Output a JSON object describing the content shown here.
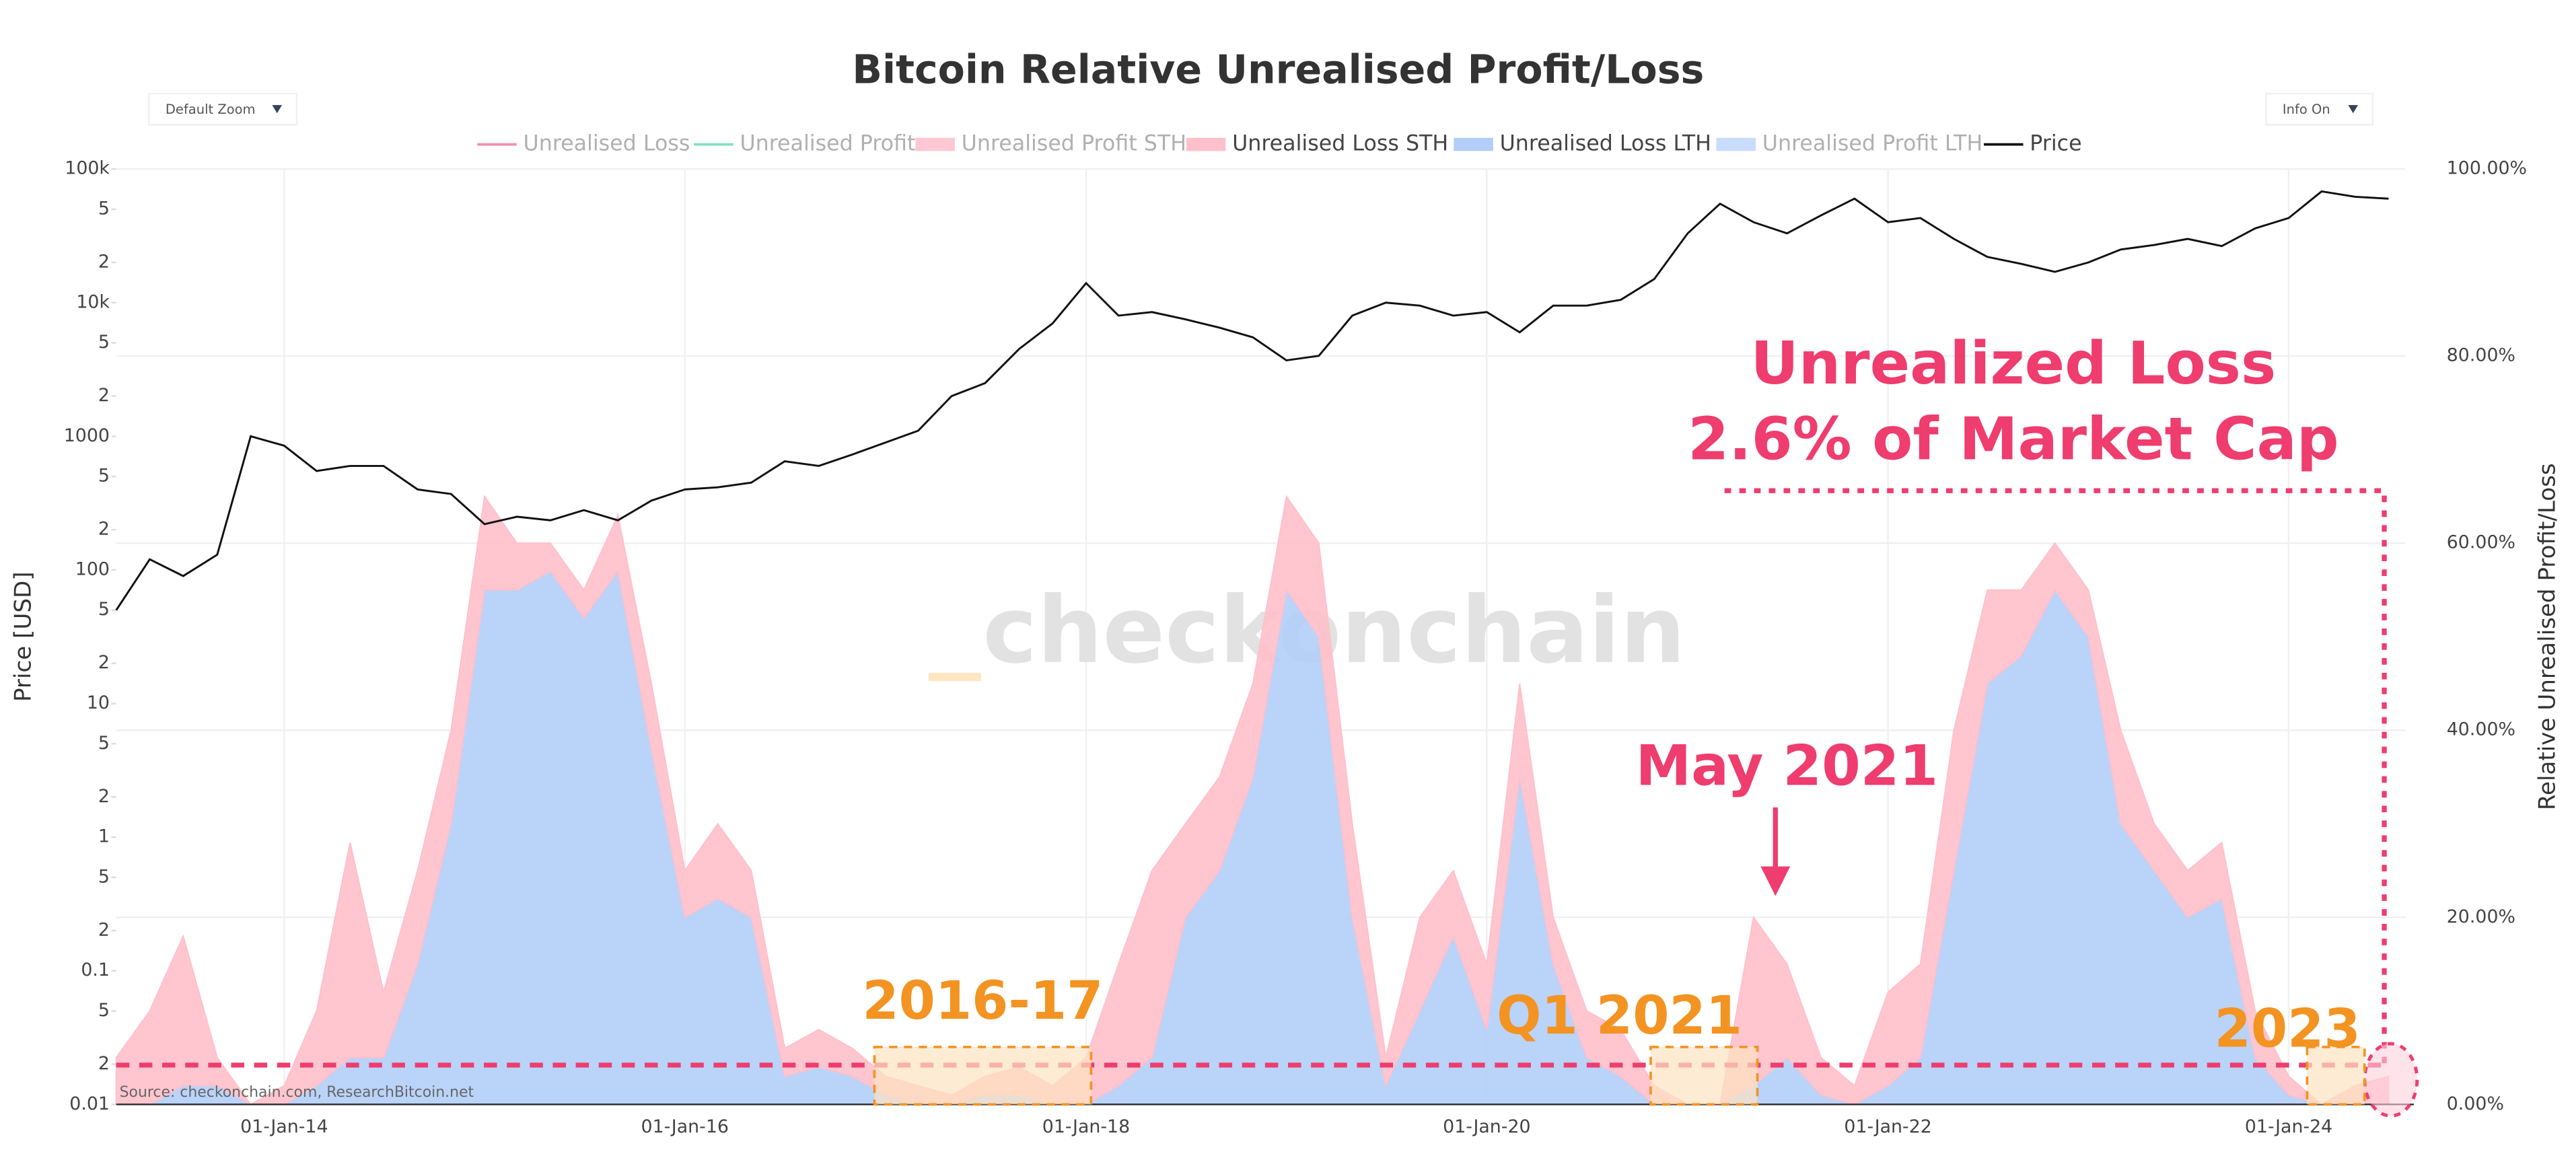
{
  "chart_data": {
    "type": "line-area",
    "title": "Bitcoin Relative Unrealised Profit/Loss",
    "controls": [
      "Default Zoom",
      "Info On"
    ],
    "ylabel": "Price [USD]",
    "y2label": "Relative Unrealised Profit/Loss",
    "source": "Source: checkonchain.com, ResearchBitcoin.net",
    "watermark": "checkonchain",
    "ylog": true,
    "grid": true,
    "legend": [
      {
        "name": "Unrealised Loss",
        "color": "#f48fb1",
        "visible": false
      },
      {
        "name": "Unrealised Profit",
        "color": "#7fe0c2",
        "visible": false
      },
      {
        "name": "Unrealised Profit STH",
        "color": "#ffc7d1",
        "visible": false
      },
      {
        "name": "Unrealised Loss STH",
        "color": "#ffc0cb",
        "visible": true
      },
      {
        "name": "Unrealised Loss LTH",
        "color": "#b3cef8",
        "visible": true
      },
      {
        "name": "Unrealised Profit LTH",
        "color": "#c8dcfb",
        "visible": false
      },
      {
        "name": "Price",
        "color": "#111111",
        "visible": true
      }
    ],
    "x": [
      "2013-03-01",
      "2013-05-01",
      "2013-07-01",
      "2013-09-01",
      "2013-11-01",
      "2014-01-01",
      "2014-03-01",
      "2014-05-01",
      "2014-07-01",
      "2014-09-01",
      "2014-11-01",
      "2015-01-01",
      "2015-03-01",
      "2015-05-01",
      "2015-07-01",
      "2015-09-01",
      "2015-11-01",
      "2016-01-01",
      "2016-03-01",
      "2016-05-01",
      "2016-07-01",
      "2016-09-01",
      "2016-11-01",
      "2017-01-01",
      "2017-03-01",
      "2017-05-01",
      "2017-07-01",
      "2017-09-01",
      "2017-11-01",
      "2018-01-01",
      "2018-03-01",
      "2018-05-01",
      "2018-07-01",
      "2018-09-01",
      "2018-11-01",
      "2019-01-01",
      "2019-03-01",
      "2019-05-01",
      "2019-07-01",
      "2019-09-01",
      "2019-11-01",
      "2020-01-01",
      "2020-03-01",
      "2020-05-01",
      "2020-07-01",
      "2020-09-01",
      "2020-11-01",
      "2021-01-01",
      "2021-03-01",
      "2021-05-01",
      "2021-07-01",
      "2021-09-01",
      "2021-11-01",
      "2022-01-01",
      "2022-03-01",
      "2022-05-01",
      "2022-07-01",
      "2022-09-01",
      "2022-11-01",
      "2023-01-01",
      "2023-03-01",
      "2023-05-01",
      "2023-07-01",
      "2023-09-01",
      "2023-11-01",
      "2024-01-01",
      "2024-03-01",
      "2024-05-01",
      "2024-07-01"
    ],
    "series": [
      {
        "name": "Price",
        "color": "#111111",
        "axis": "y",
        "values": [
          50,
          120,
          90,
          130,
          1000,
          850,
          550,
          600,
          600,
          400,
          370,
          220,
          250,
          235,
          280,
          235,
          330,
          400,
          415,
          450,
          650,
          600,
          730,
          900,
          1100,
          2000,
          2500,
          4500,
          7000,
          14000,
          8000,
          8500,
          7500,
          6500,
          5500,
          3700,
          4000,
          8000,
          10000,
          9500,
          8000,
          8500,
          6000,
          9500,
          9500,
          10500,
          15000,
          33000,
          55000,
          40000,
          33000,
          45000,
          60000,
          40000,
          43000,
          30000,
          22000,
          19500,
          17000,
          20000,
          25000,
          27000,
          30000,
          26500,
          36000,
          43000,
          68000,
          62000,
          60000
        ]
      },
      {
        "name": "Unrealised Loss LTH",
        "color": "#b3cef8",
        "axis": "y2",
        "values": [
          0,
          0,
          2,
          2,
          0,
          0,
          2,
          5,
          5,
          15,
          30,
          55,
          55,
          57,
          52,
          57,
          38,
          20,
          22,
          20,
          3,
          4,
          3,
          1,
          0,
          0,
          1,
          1,
          0,
          0,
          2,
          5,
          20,
          25,
          35,
          55,
          50,
          20,
          2,
          10,
          18,
          8,
          35,
          15,
          5,
          3,
          0,
          0,
          0,
          2,
          5,
          1,
          0,
          2,
          5,
          25,
          45,
          48,
          55,
          50,
          30,
          25,
          20,
          22,
          5,
          1,
          0,
          0,
          0
        ]
      },
      {
        "name": "Unrealised Loss STH",
        "color": "#ffc0cb",
        "axis": "y2",
        "stacked": true,
        "values": [
          5,
          10,
          16,
          3,
          0,
          2,
          8,
          23,
          7,
          10,
          10,
          10,
          5,
          3,
          3,
          6,
          7,
          5,
          8,
          5,
          3,
          4,
          3,
          2,
          2,
          1,
          2,
          3,
          2,
          5,
          13,
          20,
          10,
          10,
          10,
          10,
          10,
          10,
          3,
          10,
          7,
          7,
          10,
          5,
          5,
          5,
          2,
          0,
          0,
          18,
          10,
          4,
          2,
          10,
          10,
          15,
          10,
          7,
          5,
          5,
          10,
          5,
          5,
          6,
          5,
          2,
          0,
          2,
          3
        ]
      }
    ],
    "xlim": [
      "2013-03-01",
      "2024-08-01"
    ],
    "xticks": [
      {
        "value": "2014-01-01",
        "label": "01-Jan-14"
      },
      {
        "value": "2016-01-01",
        "label": "01-Jan-16"
      },
      {
        "value": "2018-01-01",
        "label": "01-Jan-18"
      },
      {
        "value": "2020-01-01",
        "label": "01-Jan-20"
      },
      {
        "value": "2022-01-01",
        "label": "01-Jan-22"
      },
      {
        "value": "2024-01-01",
        "label": "01-Jan-24"
      }
    ],
    "ylim": [
      0.01,
      100000
    ],
    "yticks": [
      {
        "value": 100000,
        "label": "100k"
      },
      {
        "value": 50000,
        "label": "5"
      },
      {
        "value": 20000,
        "label": "2"
      },
      {
        "value": 10000,
        "label": "10k"
      },
      {
        "value": 5000,
        "label": "5"
      },
      {
        "value": 2000,
        "label": "2"
      },
      1000,
      {
        "value": 500,
        "label": "5"
      },
      {
        "value": 200,
        "label": "2"
      },
      100,
      {
        "value": 50,
        "label": "5"
      },
      {
        "value": 20,
        "label": "2"
      },
      10,
      5,
      2,
      1,
      {
        "value": 0.5,
        "label": "5"
      },
      {
        "value": 0.2,
        "label": "2"
      },
      0.1,
      {
        "value": 0.05,
        "label": "5"
      },
      {
        "value": 0.02,
        "label": "2"
      },
      0.01
    ],
    "y2lim": [
      0,
      100
    ],
    "y2ticks": [
      {
        "value": 0,
        "label": "0.00%"
      },
      {
        "value": 20,
        "label": "20.00%"
      },
      {
        "value": 40,
        "label": "40.00%"
      },
      {
        "value": 60,
        "label": "60.00%"
      },
      {
        "value": 80,
        "label": "80.00%"
      },
      {
        "value": 100,
        "label": "100.00%"
      }
    ],
    "threshold": 4.2,
    "annotations": [
      "Unrealized Loss",
      "2.6% of Market Cap",
      "May 2021",
      "2016-17",
      "Q1 2021",
      "2023"
    ]
  }
}
